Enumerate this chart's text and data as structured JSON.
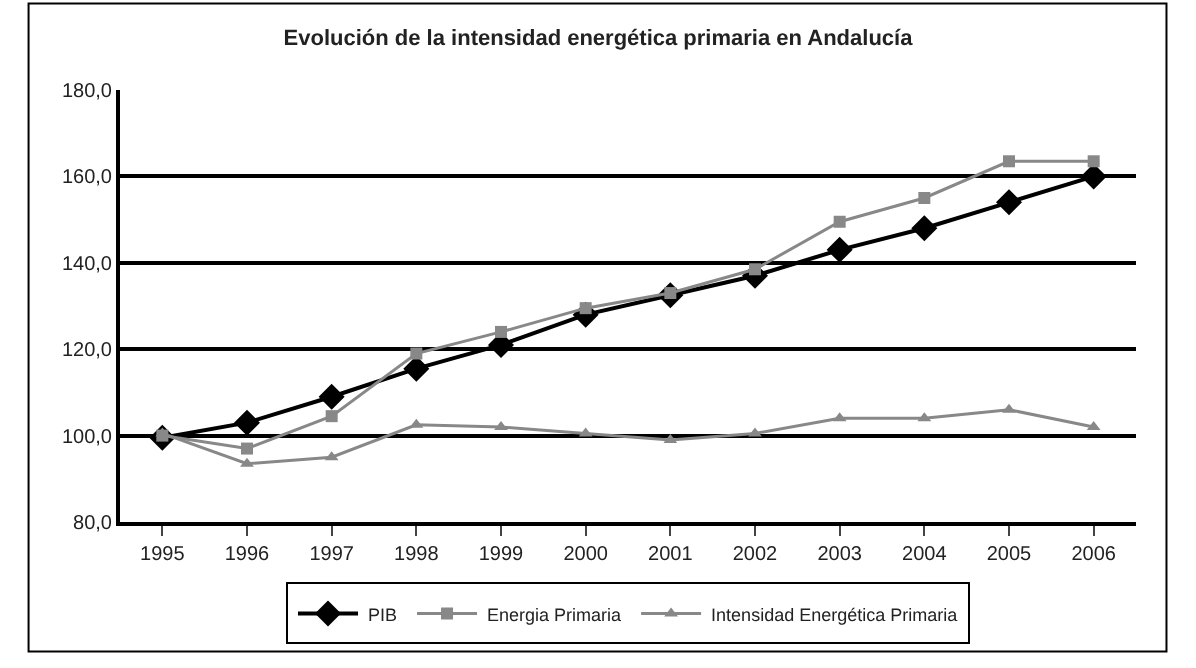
{
  "chart_data": {
    "type": "line",
    "title": "Evolución de la intensidad energética primaria en Andalucía",
    "categories": [
      "1995",
      "1996",
      "1997",
      "1998",
      "1999",
      "2000",
      "2001",
      "2002",
      "2003",
      "2004",
      "2005",
      "2006"
    ],
    "series": [
      {
        "name": "PIB",
        "color": "#000000",
        "marker": "diamond",
        "values": [
          99.5,
          103,
          109,
          115.5,
          121,
          128,
          132.5,
          137,
          143,
          148,
          154,
          160
        ]
      },
      {
        "name": "Energia Primaria",
        "color": "#888888",
        "marker": "square",
        "values": [
          100,
          97,
          104.5,
          119,
          124,
          129.5,
          133,
          138.5,
          149.5,
          155,
          163.5,
          163.5
        ]
      },
      {
        "name": "Intensidad Energética Primaria",
        "color": "#888888",
        "marker": "triangle",
        "values": [
          100.5,
          93.5,
          95,
          102.5,
          102,
          100.5,
          99,
          100.5,
          104,
          104,
          106,
          102
        ]
      }
    ],
    "ylim": [
      80,
      180
    ],
    "yticks": [
      {
        "value": 80,
        "label": "80,0"
      },
      {
        "value": 100,
        "label": "100,0"
      },
      {
        "value": 120,
        "label": "120,0"
      },
      {
        "value": 140,
        "label": "140,0"
      },
      {
        "value": 160,
        "label": "160,0"
      },
      {
        "value": 180,
        "label": "180,0"
      }
    ],
    "grid": "y",
    "legend": "bottom",
    "line_style": "solid"
  }
}
